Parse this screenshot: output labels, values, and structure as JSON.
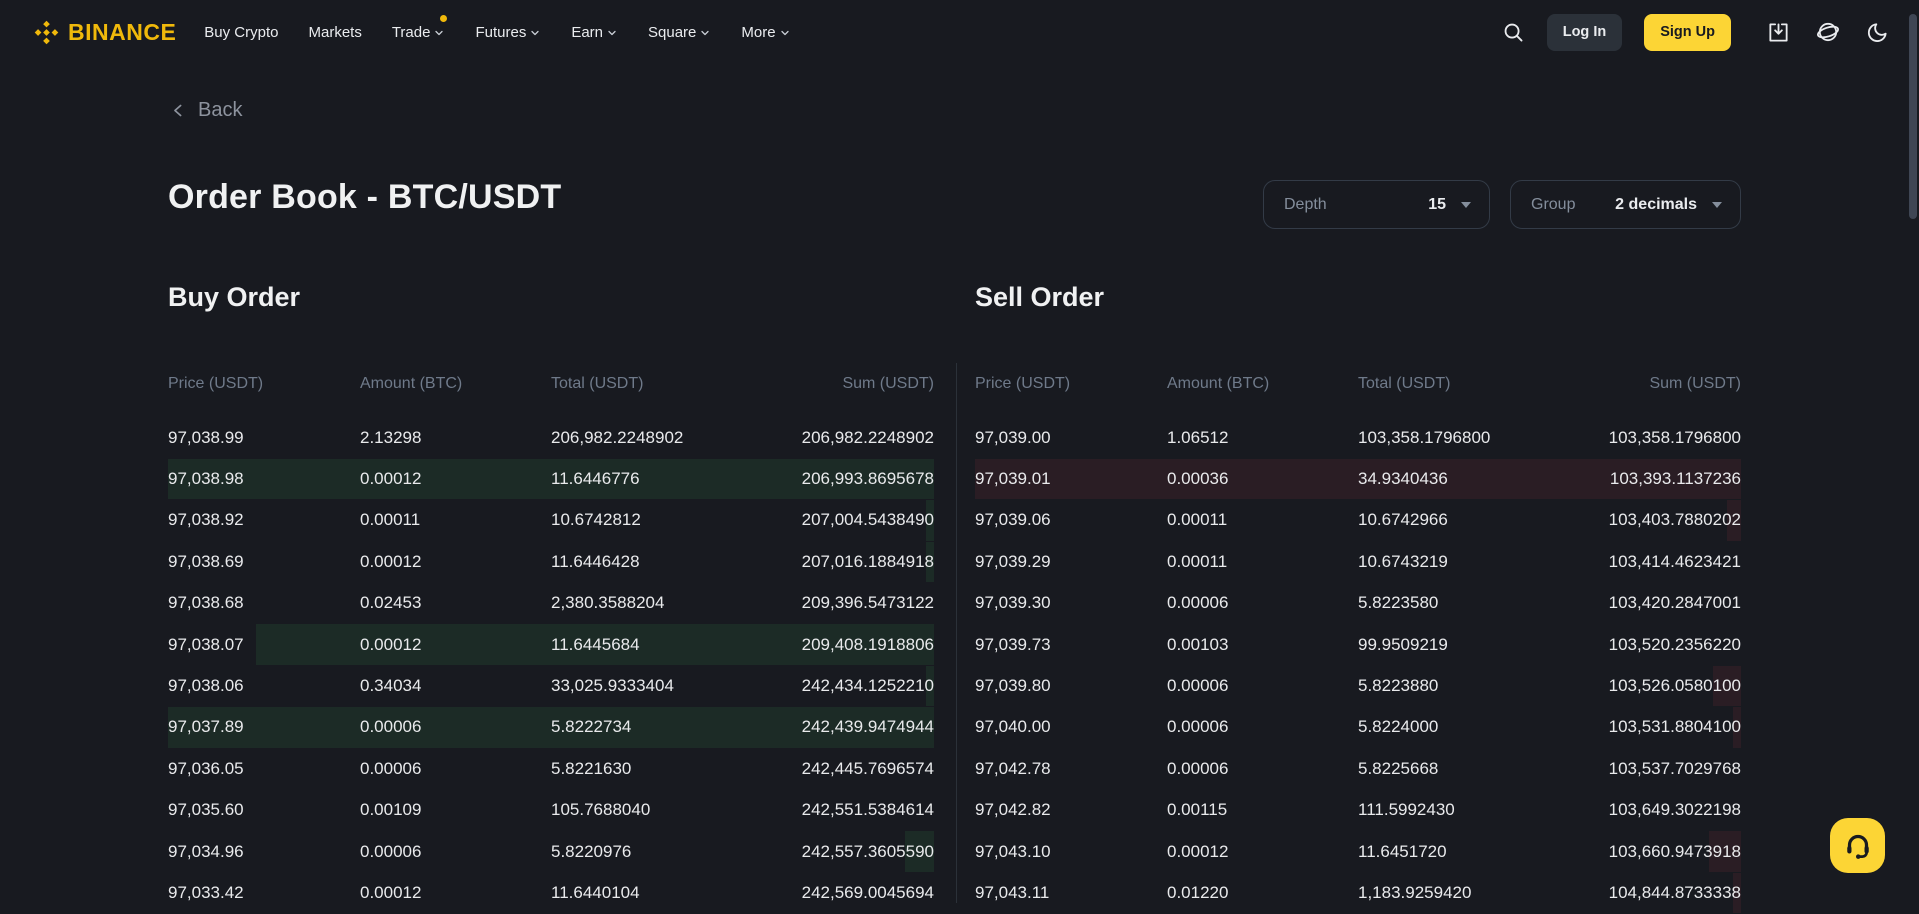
{
  "nav": {
    "brand": "BINANCE",
    "items": [
      {
        "label": "Buy Crypto",
        "caret": false,
        "dot": false
      },
      {
        "label": "Markets",
        "caret": false,
        "dot": false
      },
      {
        "label": "Trade",
        "caret": true,
        "dot": true
      },
      {
        "label": "Futures",
        "caret": true,
        "dot": false
      },
      {
        "label": "Earn",
        "caret": true,
        "dot": false
      },
      {
        "label": "Square",
        "caret": true,
        "dot": false
      },
      {
        "label": "More",
        "caret": true,
        "dot": false
      }
    ],
    "login_label": "Log In",
    "signup_label": "Sign Up",
    "right_icons": [
      "search-icon",
      "download-app-icon",
      "globe-icon",
      "moon-icon"
    ]
  },
  "page": {
    "back_label": "Back",
    "title": "Order Book - BTC/USDT"
  },
  "controls": {
    "depth": {
      "label": "Depth",
      "value": "15"
    },
    "group": {
      "label": "Group",
      "value": "2 decimals"
    }
  },
  "buy_table": {
    "title": "Buy Order",
    "headers": [
      "Price (USDT)",
      "Amount (BTC)",
      "Total (USDT)",
      "Sum (USDT)"
    ],
    "rows": [
      {
        "price": "97,038.99",
        "amount": "2.13298",
        "total": "206,982.2248902",
        "sum": "206,982.2248902",
        "bar": 0
      },
      {
        "price": "97,038.98",
        "amount": "0.00012",
        "total": "11.6446776",
        "sum": "206,993.8695678",
        "bar": 100
      },
      {
        "price": "97,038.92",
        "amount": "0.00011",
        "total": "10.6742812",
        "sum": "207,004.5438490",
        "bar": 1
      },
      {
        "price": "97,038.69",
        "amount": "0.00012",
        "total": "11.6446428",
        "sum": "207,016.1884918",
        "bar": 1
      },
      {
        "price": "97,038.68",
        "amount": "0.02453",
        "total": "2,380.3588204",
        "sum": "209,396.5473122",
        "bar": 0
      },
      {
        "price": "97,038.07",
        "amount": "0.00012",
        "total": "11.6445684",
        "sum": "209,408.1918806",
        "bar": 88.5
      },
      {
        "price": "97,038.06",
        "amount": "0.34034",
        "total": "33,025.9333404",
        "sum": "242,434.1252210",
        "bar": 1
      },
      {
        "price": "97,037.89",
        "amount": "0.00006",
        "total": "5.8222734",
        "sum": "242,439.9474944",
        "bar": 100
      },
      {
        "price": "97,036.05",
        "amount": "0.00006",
        "total": "5.8221630",
        "sum": "242,445.7696574",
        "bar": 0
      },
      {
        "price": "97,035.60",
        "amount": "0.00109",
        "total": "105.7688040",
        "sum": "242,551.5384614",
        "bar": 0
      },
      {
        "price": "97,034.96",
        "amount": "0.00006",
        "total": "5.8220976",
        "sum": "242,557.3605590",
        "bar": 3.8
      },
      {
        "price": "97,033.42",
        "amount": "0.00012",
        "total": "11.6440104",
        "sum": "242,569.0045694",
        "bar": 0
      }
    ]
  },
  "sell_table": {
    "title": "Sell Order",
    "headers": [
      "Price (USDT)",
      "Amount (BTC)",
      "Total (USDT)",
      "Sum (USDT)"
    ],
    "rows": [
      {
        "price": "97,039.00",
        "amount": "1.06512",
        "total": "103,358.1796800",
        "sum": "103,358.1796800",
        "bar": 0
      },
      {
        "price": "97,039.01",
        "amount": "0.00036",
        "total": "34.9340436",
        "sum": "103,393.1137236",
        "bar": 100
      },
      {
        "price": "97,039.06",
        "amount": "0.00011",
        "total": "10.6742966",
        "sum": "103,403.7880202",
        "bar": 1.8
      },
      {
        "price": "97,039.29",
        "amount": "0.00011",
        "total": "10.6743219",
        "sum": "103,414.4623421",
        "bar": 0
      },
      {
        "price": "97,039.30",
        "amount": "0.00006",
        "total": "5.8223580",
        "sum": "103,420.2847001",
        "bar": 0
      },
      {
        "price": "97,039.73",
        "amount": "0.00103",
        "total": "99.9509219",
        "sum": "103,520.2356220",
        "bar": 0
      },
      {
        "price": "97,039.80",
        "amount": "0.00006",
        "total": "5.8223880",
        "sum": "103,526.0580100",
        "bar": 3.7
      },
      {
        "price": "97,040.00",
        "amount": "0.00006",
        "total": "5.8224000",
        "sum": "103,531.8804100",
        "bar": 1
      },
      {
        "price": "97,042.78",
        "amount": "0.00006",
        "total": "5.8225668",
        "sum": "103,537.7029768",
        "bar": 0
      },
      {
        "price": "97,042.82",
        "amount": "0.00115",
        "total": "111.5992430",
        "sum": "103,649.3022198",
        "bar": 0
      },
      {
        "price": "97,043.10",
        "amount": "0.00012",
        "total": "11.6451720",
        "sum": "103,660.9473918",
        "bar": 4.2
      },
      {
        "price": "97,043.11",
        "amount": "0.01220",
        "total": "1,183.9259420",
        "sum": "104,844.8733338",
        "bar": 1
      }
    ]
  },
  "colors": {
    "bg": "#181A20",
    "text-primary": "#EAECEF",
    "text-secondary": "#848E9C",
    "header-gray": "#6F7A8A",
    "border": "#333B47",
    "brand-yellow": "#F0B90B",
    "signup-yellow": "#FCD535",
    "login-bg": "#2B3139",
    "buy-highlight": "#1C2B26",
    "sell-highlight": "#2A1D24",
    "divider": "#2B3139"
  }
}
